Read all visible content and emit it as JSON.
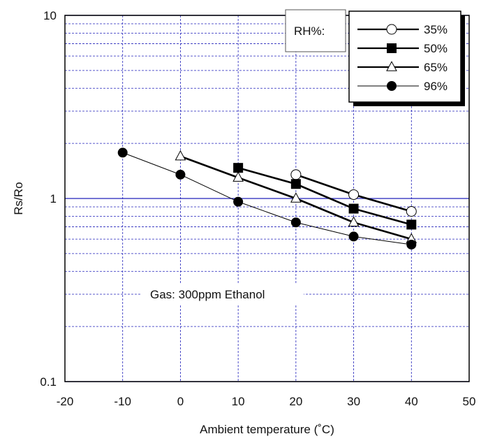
{
  "chart_data": {
    "type": "line",
    "title": "",
    "xlabel": "Ambient temperature (˚C)",
    "ylabel": "Rs/Ro",
    "xlim": [
      -20,
      50
    ],
    "ylim": [
      0.1,
      10
    ],
    "yscale": "log",
    "x_ticks": [
      "-20",
      "-10",
      "0",
      "10",
      "20",
      "30",
      "40",
      "50"
    ],
    "y_ticks": [
      "0.1",
      "1",
      "10"
    ],
    "grid": true,
    "grid_color": "#2222bb",
    "legend_title": "RH%:",
    "legend_position": "top-right",
    "annotation": "Gas: 300ppm Ethanol",
    "series": [
      {
        "name": "35%",
        "marker": "circle-open",
        "line": "thick",
        "x": [
          20,
          30,
          40
        ],
        "y": [
          1.35,
          1.05,
          0.85
        ]
      },
      {
        "name": "50%",
        "marker": "square-filled",
        "line": "thick",
        "x": [
          10,
          20,
          30,
          40
        ],
        "y": [
          1.47,
          1.2,
          0.88,
          0.72
        ]
      },
      {
        "name": "65%",
        "marker": "triangle-open",
        "line": "thick",
        "x": [
          0,
          10,
          20,
          30,
          40
        ],
        "y": [
          1.7,
          1.3,
          1.0,
          0.74,
          0.6
        ]
      },
      {
        "name": "96%",
        "marker": "circle-filled",
        "line": "thin",
        "x": [
          -10,
          0,
          10,
          20,
          30,
          40
        ],
        "y": [
          1.78,
          1.35,
          0.96,
          0.74,
          0.62,
          0.56
        ]
      }
    ]
  }
}
